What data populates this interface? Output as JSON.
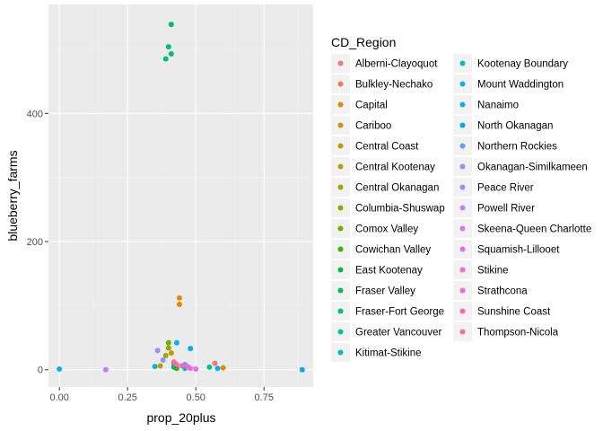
{
  "chart_data": {
    "type": "scatter",
    "xlabel": "prop_20plus",
    "ylabel": "blueberry_farms",
    "xlim": [
      -0.04,
      0.93
    ],
    "ylim": [
      -27,
      570
    ],
    "xticks": [
      0.0,
      0.25,
      0.5,
      0.75
    ],
    "xtick_labels": [
      "0.00",
      "0.25",
      "0.50",
      "0.75"
    ],
    "yticks": [
      0,
      200,
      400
    ],
    "ytick_labels": [
      "0",
      "200",
      "400"
    ],
    "grid": true,
    "legend_position": "right",
    "legend_title": "CD_Region",
    "series": [
      {
        "name": "Alberni-Clayoquot",
        "color": "#F8766D",
        "points": [
          [
            0.57,
            10
          ]
        ]
      },
      {
        "name": "Bulkley-Nechako",
        "color": "#EF7F47",
        "points": [
          [
            0.42,
            6
          ]
        ]
      },
      {
        "name": "Capital",
        "color": "#E58700",
        "points": [
          [
            0.44,
            112
          ],
          [
            0.44,
            102
          ]
        ]
      },
      {
        "name": "Cariboo",
        "color": "#D89000",
        "points": [
          [
            0.6,
            3
          ]
        ]
      },
      {
        "name": "Central Coast",
        "color": "#C99800",
        "points": [
          [
            0.37,
            6
          ]
        ]
      },
      {
        "name": "Central Kootenay",
        "color": "#B79F00",
        "points": [
          [
            0.41,
            26
          ]
        ]
      },
      {
        "name": "Central Okanagan",
        "color": "#A3A500",
        "points": [
          [
            0.39,
            22
          ]
        ]
      },
      {
        "name": "Columbia-Shuswap",
        "color": "#8BAB00",
        "points": [
          [
            0.4,
            34
          ]
        ]
      },
      {
        "name": "Comox Valley",
        "color": "#6BB100",
        "points": [
          [
            0.4,
            42
          ]
        ]
      },
      {
        "name": "Cowichan Valley",
        "color": "#39B600",
        "points": [
          [
            0.43,
            2
          ]
        ]
      },
      {
        "name": "East Kootenay",
        "color": "#00BA38",
        "points": [
          [
            0.42,
            4
          ]
        ]
      },
      {
        "name": "Fraser Valley",
        "color": "#00BD5C",
        "points": [
          [
            0.41,
            539
          ]
        ]
      },
      {
        "name": "Fraser-Fort George",
        "color": "#00BF7D",
        "points": [
          [
            0.39,
            485
          ],
          [
            0.41,
            493
          ],
          [
            0.4,
            504
          ]
        ]
      },
      {
        "name": "Greater Vancouver",
        "color": "#00C19A",
        "points": [
          [
            0.55,
            4
          ]
        ]
      },
      {
        "name": "Kitimat-Stikine",
        "color": "#00C0B5",
        "points": [
          [
            0.46,
            2
          ]
        ]
      },
      {
        "name": "Kootenay Boundary",
        "color": "#00BFC4",
        "points": [
          [
            0.35,
            5
          ]
        ]
      },
      {
        "name": "Mount Waddington",
        "color": "#00BBDB",
        "points": [
          [
            0.42,
            10
          ]
        ]
      },
      {
        "name": "Nanaimo",
        "color": "#00B4EF",
        "points": [
          [
            0.0,
            1
          ],
          [
            0.58,
            2
          ],
          [
            0.43,
            42
          ]
        ]
      },
      {
        "name": "North Okanagan",
        "color": "#00A9FF",
        "points": [
          [
            0.89,
            0
          ],
          [
            0.48,
            33
          ]
        ]
      },
      {
        "name": "Northern Rockies",
        "color": "#619CFF",
        "points": [
          [
            0.46,
            8
          ]
        ]
      },
      {
        "name": "Okanagan-Similkameen",
        "color": "#8F91FF",
        "points": [
          [
            0.38,
            15
          ]
        ]
      },
      {
        "name": "Peace River",
        "color": "#A58AFF",
        "points": [
          [
            0.36,
            30
          ]
        ]
      },
      {
        "name": "Powell River",
        "color": "#C77CFF",
        "points": [
          [
            0.17,
            0
          ]
        ]
      },
      {
        "name": "Skeena-Queen Charlotte",
        "color": "#DC71FA",
        "points": [
          [
            0.5,
            1
          ]
        ]
      },
      {
        "name": "Squamish-Lillooet",
        "color": "#EB69F0",
        "points": [
          [
            0.47,
            5
          ]
        ]
      },
      {
        "name": "Stikine",
        "color": "#F564E3",
        "points": [
          [
            0.48,
            2
          ]
        ]
      },
      {
        "name": "Strathcona",
        "color": "#FB61D7",
        "points": [
          [
            0.43,
            8
          ]
        ]
      },
      {
        "name": "Sunshine Coast",
        "color": "#FF63B6",
        "points": [
          [
            0.45,
            6
          ]
        ]
      },
      {
        "name": "Thompson-Nicola",
        "color": "#FF6C91",
        "points": [
          [
            0.42,
            12
          ]
        ]
      }
    ]
  }
}
